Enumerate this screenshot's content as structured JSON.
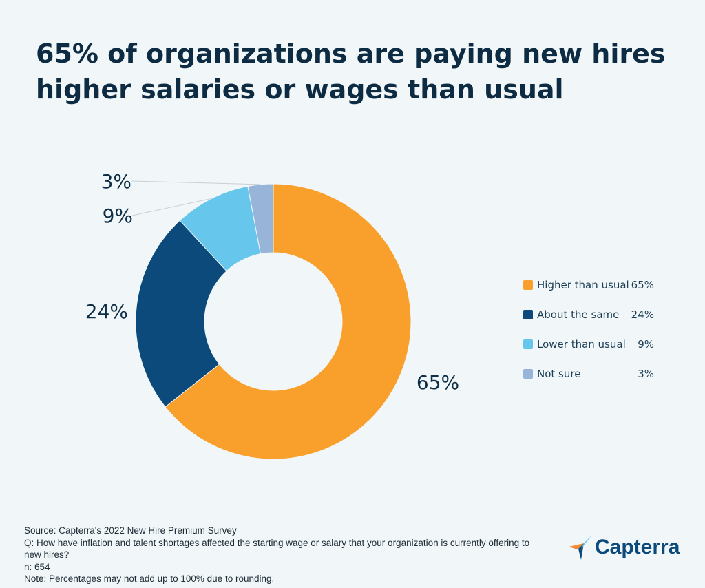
{
  "title": "65% of organizations are paying new hires higher salaries or wages than usual",
  "chart_data": {
    "type": "pie",
    "donut": true,
    "categories": [
      "Higher than usual",
      "About the same",
      "Lower than usual",
      "Not sure"
    ],
    "values": [
      65,
      24,
      9,
      3
    ],
    "labels": [
      "65%",
      "24%",
      "9%",
      "3%"
    ],
    "colors": [
      "#f99f2b",
      "#0b4a7a",
      "#66c6ec",
      "#98b5d9"
    ],
    "legend": "right"
  },
  "footer": {
    "source": "Source: Capterra's 2022 New Hire Premium Survey",
    "question": "Q: How have inflation and talent shortages affected the starting wage or salary that your organization is currently offering to new hires?",
    "n": "n: 654",
    "note": "Note: Percentages may not add up to 100% due to rounding."
  },
  "logo": {
    "text": "Capterra"
  }
}
